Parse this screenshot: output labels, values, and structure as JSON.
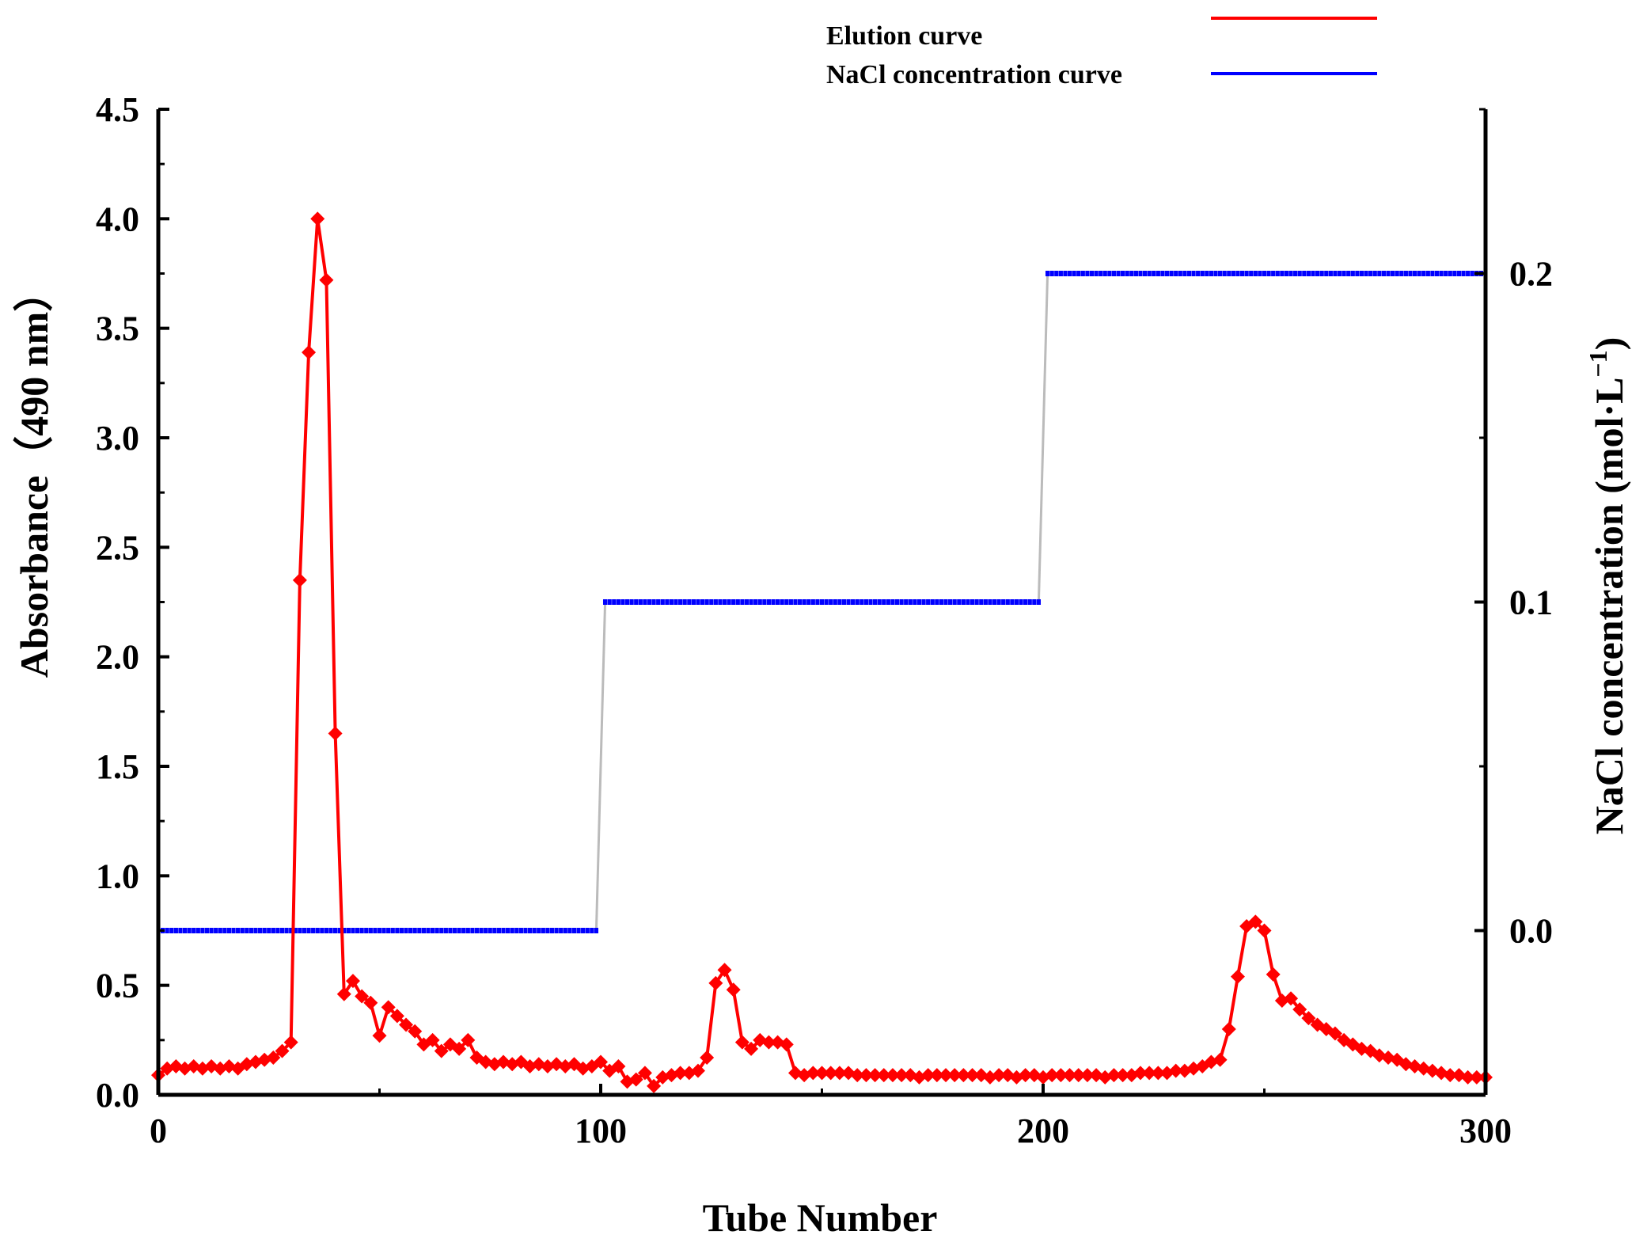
{
  "chart_data": {
    "type": "line",
    "xlabel": "Tube Number",
    "ylabel": "Absorbance（490 nm）",
    "y2label": "NaCl concentration (mol·L",
    "y2label_sup": "−1",
    "y2label_close": ")",
    "xlim": [
      0,
      300
    ],
    "ylim": [
      0,
      4.5
    ],
    "y2lim": [
      -0.05,
      0.25
    ],
    "xticks": [
      0,
      100,
      200,
      300
    ],
    "xtick_labels": [
      "0",
      "100",
      "200",
      "300"
    ],
    "yticks": [
      0.0,
      0.5,
      1.0,
      1.5,
      2.0,
      2.5,
      3.0,
      3.5,
      4.0,
      4.5
    ],
    "ytick_labels": [
      "0.0",
      "0.5",
      "1.0",
      "1.5",
      "2.0",
      "2.5",
      "3.0",
      "3.5",
      "4.0",
      "4.5"
    ],
    "y2ticks": [
      0.0,
      0.1,
      0.2
    ],
    "y2tick_labels": [
      "0.0",
      "0.1",
      "0.2"
    ],
    "legend": {
      "placement": "top-right"
    },
    "grid": false,
    "series": [
      {
        "name": "Elution curve",
        "color": "#ff0000",
        "marker": "diamond",
        "axis": "left",
        "points": [
          [
            0,
            0.09
          ],
          [
            2,
            0.12
          ],
          [
            4,
            0.13
          ],
          [
            6,
            0.12
          ],
          [
            8,
            0.13
          ],
          [
            10,
            0.12
          ],
          [
            12,
            0.13
          ],
          [
            14,
            0.12
          ],
          [
            16,
            0.13
          ],
          [
            18,
            0.12
          ],
          [
            20,
            0.14
          ],
          [
            22,
            0.15
          ],
          [
            24,
            0.16
          ],
          [
            26,
            0.17
          ],
          [
            28,
            0.2
          ],
          [
            30,
            0.24
          ],
          [
            32,
            2.35
          ],
          [
            34,
            3.39
          ],
          [
            36,
            4.0
          ],
          [
            38,
            3.72
          ],
          [
            40,
            1.65
          ],
          [
            42,
            0.46
          ],
          [
            44,
            0.52
          ],
          [
            46,
            0.45
          ],
          [
            48,
            0.42
          ],
          [
            50,
            0.27
          ],
          [
            52,
            0.4
          ],
          [
            54,
            0.36
          ],
          [
            56,
            0.32
          ],
          [
            58,
            0.29
          ],
          [
            60,
            0.23
          ],
          [
            62,
            0.25
          ],
          [
            64,
            0.2
          ],
          [
            66,
            0.23
          ],
          [
            68,
            0.21
          ],
          [
            70,
            0.25
          ],
          [
            72,
            0.17
          ],
          [
            74,
            0.15
          ],
          [
            76,
            0.14
          ],
          [
            78,
            0.15
          ],
          [
            80,
            0.14
          ],
          [
            82,
            0.15
          ],
          [
            84,
            0.13
          ],
          [
            86,
            0.14
          ],
          [
            88,
            0.13
          ],
          [
            90,
            0.14
          ],
          [
            92,
            0.13
          ],
          [
            94,
            0.14
          ],
          [
            96,
            0.12
          ],
          [
            98,
            0.13
          ],
          [
            100,
            0.15
          ],
          [
            102,
            0.11
          ],
          [
            104,
            0.13
          ],
          [
            106,
            0.06
          ],
          [
            108,
            0.07
          ],
          [
            110,
            0.1
          ],
          [
            112,
            0.04
          ],
          [
            114,
            0.08
          ],
          [
            116,
            0.09
          ],
          [
            118,
            0.1
          ],
          [
            120,
            0.1
          ],
          [
            122,
            0.11
          ],
          [
            124,
            0.17
          ],
          [
            126,
            0.51
          ],
          [
            128,
            0.57
          ],
          [
            130,
            0.48
          ],
          [
            132,
            0.24
          ],
          [
            134,
            0.21
          ],
          [
            136,
            0.25
          ],
          [
            138,
            0.24
          ],
          [
            140,
            0.24
          ],
          [
            142,
            0.23
          ],
          [
            144,
            0.1
          ],
          [
            146,
            0.09
          ],
          [
            148,
            0.1
          ],
          [
            150,
            0.1
          ],
          [
            152,
            0.1
          ],
          [
            154,
            0.1
          ],
          [
            156,
            0.1
          ],
          [
            158,
            0.09
          ],
          [
            160,
            0.09
          ],
          [
            162,
            0.09
          ],
          [
            164,
            0.09
          ],
          [
            166,
            0.09
          ],
          [
            168,
            0.09
          ],
          [
            170,
            0.09
          ],
          [
            172,
            0.08
          ],
          [
            174,
            0.09
          ],
          [
            176,
            0.09
          ],
          [
            178,
            0.09
          ],
          [
            180,
            0.09
          ],
          [
            182,
            0.09
          ],
          [
            184,
            0.09
          ],
          [
            186,
            0.09
          ],
          [
            188,
            0.08
          ],
          [
            190,
            0.09
          ],
          [
            192,
            0.09
          ],
          [
            194,
            0.08
          ],
          [
            196,
            0.09
          ],
          [
            198,
            0.09
          ],
          [
            200,
            0.08
          ],
          [
            202,
            0.09
          ],
          [
            204,
            0.09
          ],
          [
            206,
            0.09
          ],
          [
            208,
            0.09
          ],
          [
            210,
            0.09
          ],
          [
            212,
            0.09
          ],
          [
            214,
            0.08
          ],
          [
            216,
            0.09
          ],
          [
            218,
            0.09
          ],
          [
            220,
            0.09
          ],
          [
            222,
            0.1
          ],
          [
            224,
            0.1
          ],
          [
            226,
            0.1
          ],
          [
            228,
            0.1
          ],
          [
            230,
            0.11
          ],
          [
            232,
            0.11
          ],
          [
            234,
            0.12
          ],
          [
            236,
            0.13
          ],
          [
            238,
            0.15
          ],
          [
            240,
            0.16
          ],
          [
            242,
            0.3
          ],
          [
            244,
            0.54
          ],
          [
            246,
            0.77
          ],
          [
            248,
            0.79
          ],
          [
            250,
            0.75
          ],
          [
            252,
            0.55
          ],
          [
            254,
            0.43
          ],
          [
            256,
            0.44
          ],
          [
            258,
            0.39
          ],
          [
            260,
            0.35
          ],
          [
            262,
            0.32
          ],
          [
            264,
            0.3
          ],
          [
            266,
            0.28
          ],
          [
            268,
            0.25
          ],
          [
            270,
            0.23
          ],
          [
            272,
            0.21
          ],
          [
            274,
            0.2
          ],
          [
            276,
            0.18
          ],
          [
            278,
            0.17
          ],
          [
            280,
            0.16
          ],
          [
            282,
            0.14
          ],
          [
            284,
            0.13
          ],
          [
            286,
            0.12
          ],
          [
            288,
            0.11
          ],
          [
            290,
            0.1
          ],
          [
            292,
            0.09
          ],
          [
            294,
            0.09
          ],
          [
            296,
            0.08
          ],
          [
            298,
            0.08
          ],
          [
            300,
            0.08
          ]
        ]
      },
      {
        "name": "NaCl concentration curve",
        "color": "#0000ff",
        "marker": "square",
        "axis": "right",
        "transition_color": "#bbbbbb",
        "steps": [
          {
            "x_start": 1,
            "x_end": 99,
            "value": 0.0
          },
          {
            "x_start": 101,
            "x_end": 199,
            "value": 0.1
          },
          {
            "x_start": 201,
            "x_end": 299,
            "value": 0.2
          }
        ]
      }
    ]
  }
}
